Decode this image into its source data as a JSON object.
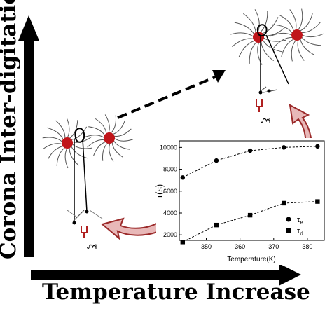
{
  "figure": {
    "y_axis_label": "Corona Inter-digitation",
    "x_axis_label": "Temperature Increase"
  },
  "inset": {
    "xlabel": "Temperature(K)",
    "ylabel": "τ(s)",
    "xticks": [
      "350",
      "360",
      "370",
      "380"
    ],
    "yticks": [
      "2000",
      "4000",
      "6000",
      "8000",
      "10000"
    ],
    "legend": [
      {
        "label": "τ",
        "sub": "e",
        "marker": "circle"
      },
      {
        "label": "τ",
        "sub": "d",
        "marker": "square"
      }
    ]
  },
  "cartoons": {
    "left_label": "ξ",
    "right_label": "ξ"
  },
  "colors": {
    "core": "#c0151a",
    "arrow_fill": "#e8b8b8",
    "arrow_stroke": "#9b2a2a",
    "axis_arrow": "#000000"
  },
  "chart_data": {
    "type": "scatter",
    "xlabel": "Temperature(K)",
    "ylabel": "τ(s)",
    "xlim": [
      342,
      385
    ],
    "ylim": [
      1500,
      10600
    ],
    "series": [
      {
        "name": "τe",
        "marker": "circle",
        "x": [
          343,
          353,
          363,
          373,
          383
        ],
        "y": [
          7250,
          8800,
          9700,
          10000,
          10100
        ]
      },
      {
        "name": "τd",
        "marker": "square",
        "x": [
          343,
          353,
          363,
          373,
          383
        ],
        "y": [
          1350,
          2900,
          3800,
          4900,
          5050
        ]
      }
    ],
    "fit_lines": "dashed"
  }
}
